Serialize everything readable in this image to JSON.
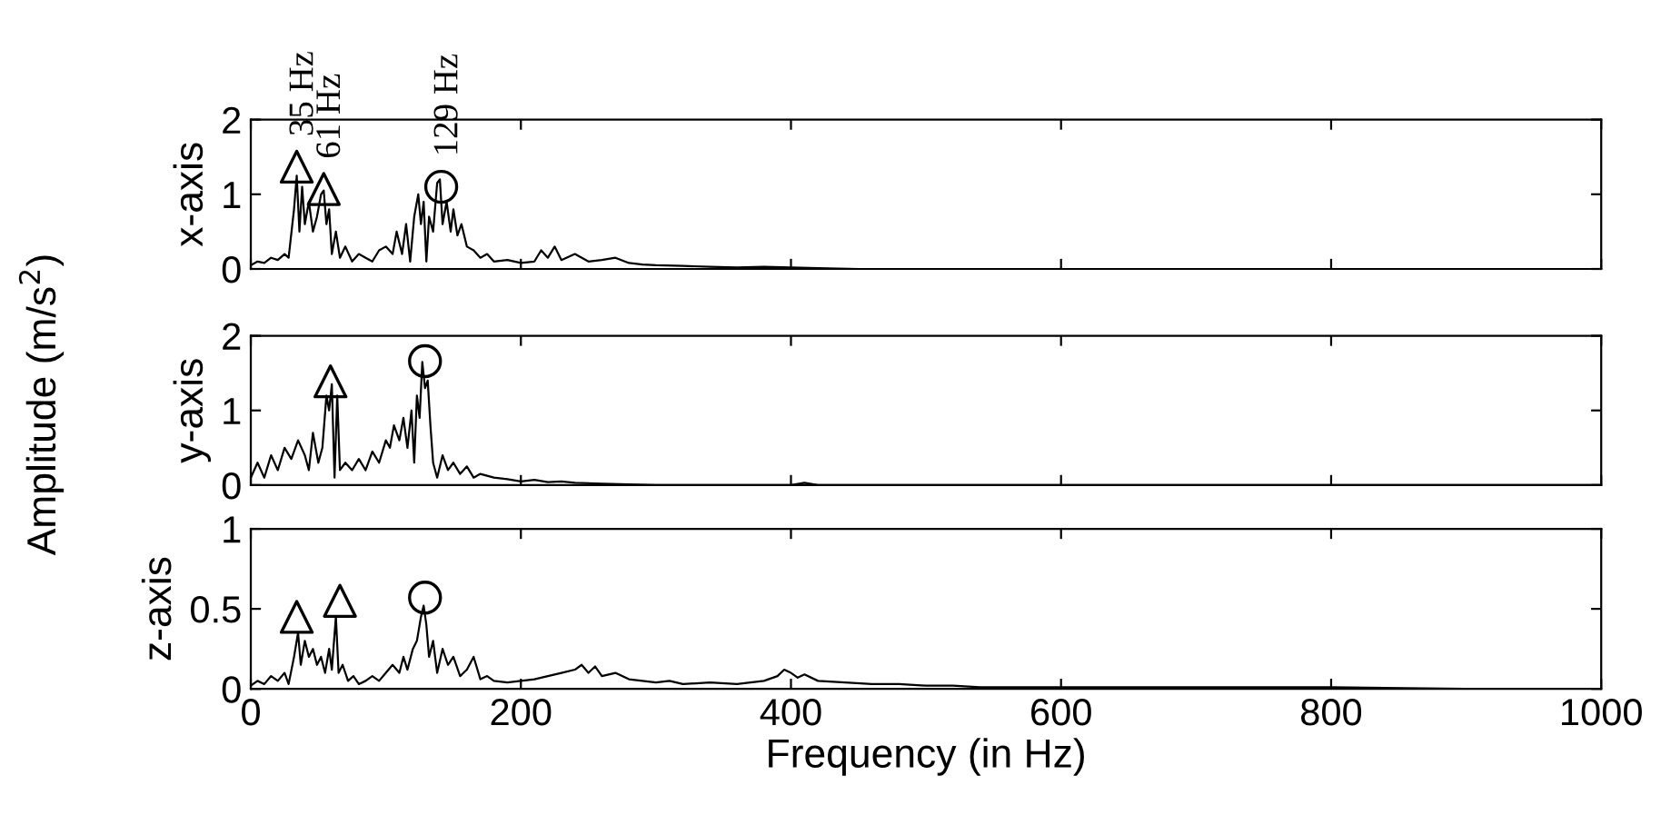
{
  "chart_data": [
    {
      "type": "line",
      "ylabel": "x-axis",
      "xlim": [
        0,
        1000
      ],
      "ylim": [
        0,
        2
      ],
      "xticks": [
        0,
        200,
        400,
        600,
        800,
        1000
      ],
      "yticks": [
        0,
        1,
        2
      ],
      "tick_labels": "y",
      "grid": false,
      "legend": false,
      "annotations": [
        {
          "text": "35 Hz",
          "x": 34,
          "y": 1.37
        },
        {
          "text": "61 Hz",
          "x": 54,
          "y": 1.07
        },
        {
          "text": "129 Hz",
          "x": 141,
          "y": 1.1
        }
      ],
      "series": [
        {
          "color": "#000000",
          "x": [
            0,
            5,
            10,
            15,
            20,
            25,
            28,
            32,
            34,
            36,
            38,
            40,
            43,
            46,
            49,
            52,
            54,
            56,
            58,
            60,
            63,
            66,
            70,
            75,
            80,
            85,
            90,
            95,
            100,
            105,
            108,
            112,
            115,
            118,
            121,
            124,
            126,
            128,
            130,
            132,
            135,
            138,
            140,
            142,
            145,
            148,
            150,
            153,
            156,
            160,
            165,
            170,
            175,
            180,
            190,
            200,
            210,
            215,
            220,
            225,
            230,
            240,
            250,
            260,
            270,
            280,
            290,
            300,
            320,
            340,
            360,
            380,
            400,
            420,
            450,
            500,
            600,
            700,
            800,
            900,
            1000
          ],
          "values": [
            0.05,
            0.1,
            0.08,
            0.15,
            0.12,
            0.2,
            0.15,
            0.8,
            1.25,
            0.5,
            1.1,
            0.6,
            0.9,
            0.5,
            0.7,
            1.0,
            1.05,
            0.6,
            0.8,
            0.2,
            0.5,
            0.15,
            0.3,
            0.1,
            0.2,
            0.15,
            0.1,
            0.25,
            0.3,
            0.2,
            0.5,
            0.2,
            0.6,
            0.1,
            0.7,
            1.0,
            0.6,
            0.9,
            0.1,
            0.7,
            0.5,
            1.15,
            1.2,
            0.6,
            0.9,
            0.5,
            0.8,
            0.45,
            0.6,
            0.3,
            0.25,
            0.15,
            0.2,
            0.1,
            0.12,
            0.08,
            0.1,
            0.25,
            0.15,
            0.3,
            0.12,
            0.2,
            0.1,
            0.12,
            0.15,
            0.08,
            0.06,
            0.05,
            0.04,
            0.03,
            0.02,
            0.03,
            0.02,
            0.01,
            0,
            0,
            0,
            0,
            0,
            0,
            0
          ]
        },
        {
          "type": "scatter",
          "marker": "triangle",
          "color": "#000000",
          "x": [
            34,
            54
          ],
          "values": [
            1.37,
            1.07
          ]
        },
        {
          "type": "scatter",
          "marker": "circle",
          "color": "#000000",
          "x": [
            141
          ],
          "values": [
            1.1
          ]
        }
      ]
    },
    {
      "type": "line",
      "ylabel": "y-axis",
      "xlim": [
        0,
        1000
      ],
      "ylim": [
        0,
        2
      ],
      "xticks": [
        0,
        200,
        400,
        600,
        800,
        1000
      ],
      "yticks": [
        0,
        1,
        2
      ],
      "tick_labels": "y",
      "grid": false,
      "legend": false,
      "annotations": [
        "Amplitude (m/s$^{2}$)"
      ],
      "series": [
        {
          "color": "#000000",
          "x": [
            0,
            5,
            10,
            15,
            20,
            25,
            30,
            35,
            40,
            43,
            46,
            50,
            53,
            56,
            58,
            60,
            62,
            64,
            66,
            70,
            75,
            80,
            85,
            90,
            95,
            100,
            103,
            106,
            110,
            113,
            116,
            119,
            121,
            123,
            125,
            127,
            129,
            131,
            133,
            135,
            138,
            142,
            146,
            150,
            155,
            160,
            165,
            170,
            180,
            190,
            200,
            210,
            220,
            230,
            240,
            260,
            280,
            300,
            400,
            410,
            420,
            1000
          ],
          "values": [
            0.1,
            0.3,
            0.1,
            0.4,
            0.2,
            0.5,
            0.35,
            0.6,
            0.4,
            0.2,
            0.7,
            0.3,
            0.5,
            1.2,
            1.0,
            1.35,
            0.1,
            1.2,
            0.2,
            0.3,
            0.2,
            0.35,
            0.2,
            0.45,
            0.3,
            0.6,
            0.5,
            0.8,
            0.6,
            0.9,
            0.5,
            1.0,
            0.3,
            1.2,
            0.9,
            1.65,
            1.3,
            1.4,
            0.8,
            0.3,
            0.1,
            0.4,
            0.2,
            0.3,
            0.15,
            0.25,
            0.1,
            0.15,
            0.1,
            0.08,
            0.05,
            0.07,
            0.04,
            0.05,
            0.03,
            0.02,
            0.01,
            0,
            0,
            0.03,
            0,
            0
          ]
        },
        {
          "type": "scatter",
          "marker": "triangle",
          "color": "#000000",
          "x": [
            59
          ],
          "values": [
            1.39
          ]
        },
        {
          "type": "scatter",
          "marker": "circle",
          "color": "#000000",
          "x": [
            129
          ],
          "values": [
            1.66
          ]
        }
      ]
    },
    {
      "type": "line",
      "ylabel": "z-axis",
      "xlabel": "Frequency (in Hz)",
      "xlim": [
        0,
        1000
      ],
      "ylim": [
        0,
        1
      ],
      "xticks": [
        0,
        200,
        400,
        600,
        800,
        1000
      ],
      "yticks": [
        0,
        0.5,
        1
      ],
      "grid": false,
      "legend": false,
      "series": [
        {
          "color": "#000000",
          "x": [
            0,
            5,
            10,
            15,
            20,
            25,
            28,
            32,
            35,
            37,
            40,
            43,
            46,
            49,
            52,
            55,
            58,
            60,
            63,
            65,
            68,
            72,
            76,
            80,
            85,
            90,
            95,
            100,
            105,
            110,
            113,
            116,
            120,
            123,
            126,
            128,
            130,
            132,
            135,
            138,
            142,
            146,
            150,
            155,
            160,
            165,
            170,
            175,
            180,
            190,
            200,
            210,
            220,
            230,
            240,
            245,
            250,
            255,
            260,
            270,
            280,
            290,
            300,
            310,
            320,
            340,
            360,
            380,
            390,
            395,
            400,
            405,
            410,
            420,
            440,
            460,
            480,
            500,
            520,
            540,
            600,
            700,
            800,
            900,
            1000
          ],
          "values": [
            0.02,
            0.05,
            0.03,
            0.08,
            0.05,
            0.1,
            0.03,
            0.2,
            0.35,
            0.15,
            0.3,
            0.2,
            0.25,
            0.15,
            0.2,
            0.1,
            0.25,
            0.12,
            0.45,
            0.1,
            0.15,
            0.05,
            0.08,
            0.03,
            0.05,
            0.08,
            0.05,
            0.1,
            0.15,
            0.1,
            0.2,
            0.12,
            0.25,
            0.3,
            0.45,
            0.52,
            0.4,
            0.2,
            0.3,
            0.1,
            0.25,
            0.15,
            0.2,
            0.08,
            0.12,
            0.2,
            0.06,
            0.08,
            0.05,
            0.04,
            0.05,
            0.06,
            0.08,
            0.1,
            0.12,
            0.15,
            0.1,
            0.14,
            0.08,
            0.1,
            0.06,
            0.05,
            0.04,
            0.05,
            0.03,
            0.04,
            0.03,
            0.05,
            0.08,
            0.12,
            0.1,
            0.07,
            0.09,
            0.05,
            0.04,
            0.03,
            0.03,
            0.02,
            0.02,
            0.01,
            0.01,
            0.01,
            0.01,
            0,
            0
          ]
        },
        {
          "type": "scatter",
          "marker": "triangle",
          "color": "#000000",
          "x": [
            34,
            66
          ],
          "values": [
            0.45,
            0.55
          ]
        },
        {
          "type": "scatter",
          "marker": "circle",
          "color": "#000000",
          "x": [
            129
          ],
          "values": [
            0.57
          ]
        }
      ]
    }
  ]
}
